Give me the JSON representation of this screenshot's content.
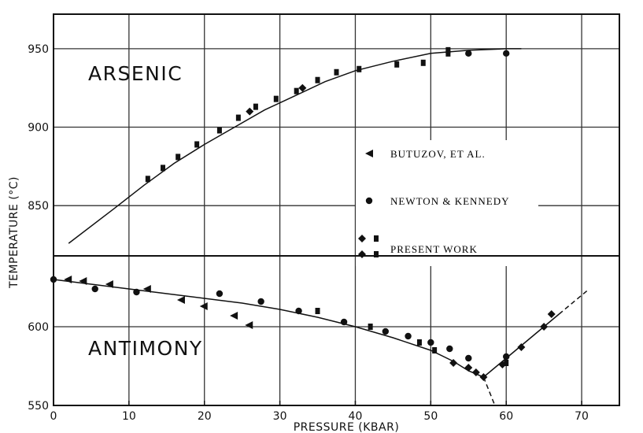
{
  "chart_data": {
    "type": "scatter",
    "xlabel": "PRESSURE (KBAR)",
    "ylabel": "TEMPERATURE (°C)",
    "xlim": [
      0,
      75
    ],
    "x_ticks": [
      "0",
      "10",
      "20",
      "30",
      "40",
      "50",
      "60",
      "70"
    ],
    "upper_panel": {
      "label": "ARSENIC",
      "y_ticks": [
        "850",
        "900",
        "950"
      ],
      "ylim": [
        818,
        972
      ],
      "curve": [
        [
          2,
          826
        ],
        [
          8,
          848
        ],
        [
          12,
          863
        ],
        [
          16,
          877
        ],
        [
          20,
          889
        ],
        [
          24,
          900
        ],
        [
          28,
          911
        ],
        [
          32,
          920
        ],
        [
          36,
          929
        ],
        [
          40,
          936
        ],
        [
          45,
          942
        ],
        [
          50,
          947
        ],
        [
          55,
          949
        ],
        [
          60,
          950
        ],
        [
          62,
          950
        ]
      ],
      "series": [
        {
          "name": "PRESENT WORK",
          "marker": "square",
          "points": [
            [
              12.5,
              867
            ],
            [
              14.5,
              874
            ],
            [
              16.5,
              881
            ],
            [
              19,
              889
            ],
            [
              22,
              898
            ],
            [
              24.5,
              906
            ],
            [
              26.8,
              913
            ],
            [
              29.5,
              918
            ],
            [
              32.2,
              923
            ],
            [
              35,
              930
            ],
            [
              37.5,
              935
            ],
            [
              40.5,
              937
            ],
            [
              45.5,
              940
            ],
            [
              49,
              941
            ],
            [
              52.3,
              947
            ],
            [
              52.3,
              949
            ]
          ]
        },
        {
          "name": "PRESENT WORK",
          "marker": "diamond",
          "points": [
            [
              26,
              910
            ],
            [
              33,
              925
            ]
          ]
        },
        {
          "name": "NEWTON & KENNEDY",
          "marker": "circle",
          "points": [
            [
              55,
              947
            ],
            [
              60,
              947
            ]
          ]
        }
      ]
    },
    "lower_panel": {
      "label": "ANTIMONY",
      "y_ticks": [
        "550",
        "600"
      ],
      "ylim": [
        550,
        645
      ],
      "curve_solid": [
        [
          0,
          630
        ],
        [
          5,
          627
        ],
        [
          10,
          624
        ],
        [
          15,
          621
        ],
        [
          20,
          618
        ],
        [
          25,
          615
        ],
        [
          30,
          611
        ],
        [
          35,
          606
        ],
        [
          40,
          600
        ],
        [
          45,
          593
        ],
        [
          50,
          585
        ],
        [
          53,
          578
        ],
        [
          55,
          572
        ],
        [
          57,
          568
        ]
      ],
      "curve_right_solid": [
        [
          57,
          568
        ],
        [
          60,
          580
        ],
        [
          65,
          600
        ],
        [
          67,
          608
        ]
      ],
      "curve_right_dashed": [
        [
          67,
          608
        ],
        [
          71,
          624
        ]
      ],
      "curve_dashed_down": [
        [
          57,
          568
        ],
        [
          58.5,
          550
        ]
      ],
      "series": [
        {
          "name": "BUTUZOV, ET AL.",
          "marker": "triangle-left",
          "points": [
            [
              2,
              630
            ],
            [
              4,
              629
            ],
            [
              7.5,
              627
            ],
            [
              12.5,
              624
            ],
            [
              17,
              617
            ],
            [
              20,
              613
            ],
            [
              24,
              607
            ],
            [
              26,
              601
            ]
          ]
        },
        {
          "name": "NEWTON & KENNEDY",
          "marker": "circle",
          "points": [
            [
              0,
              630
            ],
            [
              5.5,
              624
            ],
            [
              11,
              622
            ],
            [
              22,
              621
            ],
            [
              27.5,
              616
            ],
            [
              32.5,
              610
            ],
            [
              38.5,
              603
            ],
            [
              44,
              597
            ],
            [
              47,
              594
            ],
            [
              50,
              590
            ],
            [
              52.5,
              586
            ],
            [
              55,
              580
            ],
            [
              60,
              581
            ]
          ]
        },
        {
          "name": "PRESENT WORK",
          "marker": "square",
          "points": [
            [
              35,
              610
            ],
            [
              42,
              600
            ],
            [
              48.5,
              590
            ],
            [
              50.5,
              585
            ],
            [
              60,
              577
            ]
          ]
        },
        {
          "name": "PRESENT WORK",
          "marker": "diamond",
          "points": [
            [
              53,
              577
            ],
            [
              55,
              574
            ],
            [
              56,
              571
            ],
            [
              57,
              568
            ],
            [
              59.5,
              576
            ],
            [
              62,
              587
            ],
            [
              65,
              600
            ],
            [
              66,
              608
            ]
          ]
        }
      ]
    },
    "legend": [
      {
        "marker": "triangle-left",
        "label": "BUTUZOV, ET AL."
      },
      {
        "marker": "circle",
        "label": "NEWTON & KENNEDY"
      },
      {
        "marker": "diamond-square",
        "label": "PRESENT WORK"
      }
    ],
    "legend_position": "center-right",
    "grid": true
  }
}
